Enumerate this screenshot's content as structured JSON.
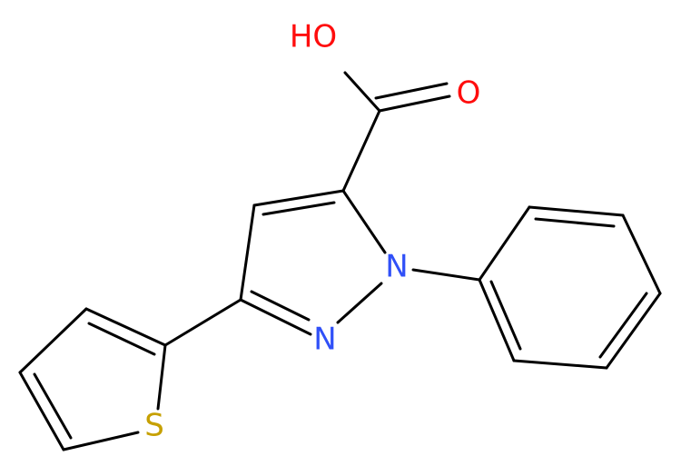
{
  "atoms": {
    "hydroxyl": "HO",
    "carbonyl_oxygen": "O",
    "nitrogen_1": "N",
    "nitrogen_2": "N",
    "sulfur": "S"
  }
}
